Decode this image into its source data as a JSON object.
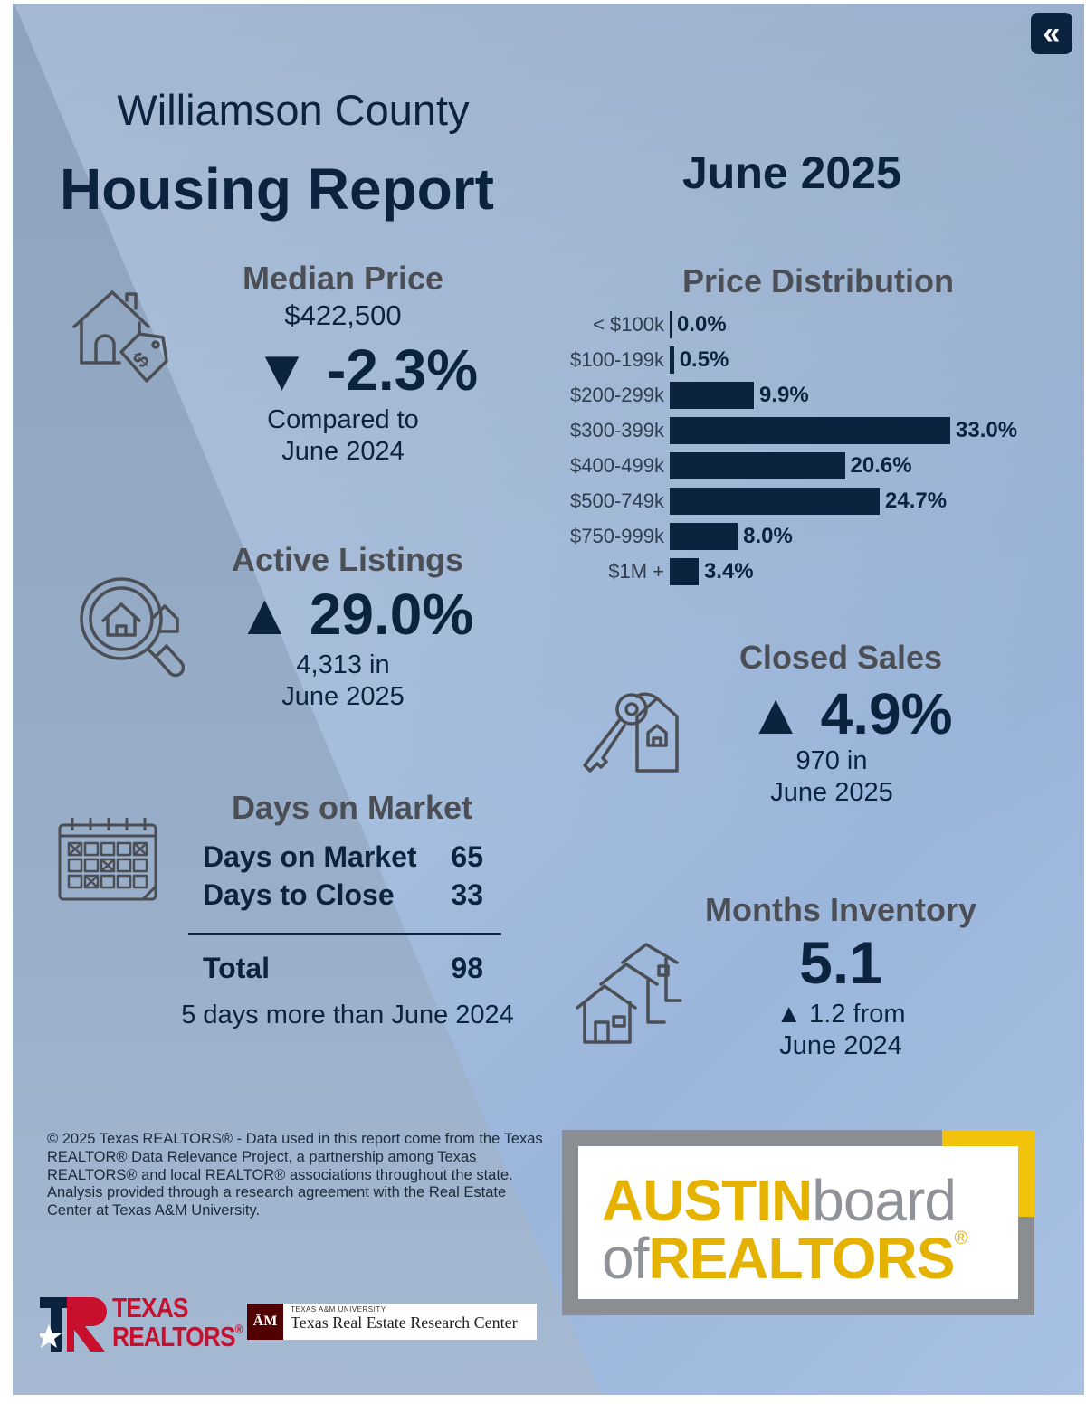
{
  "header": {
    "county": "Williamson County",
    "title": "Housing Report",
    "month": "June 2025",
    "collapse_glyph": "«"
  },
  "median_price": {
    "title": "Median Price",
    "price": "$422,500",
    "change": "▼ -2.3%",
    "compare_line1": "Compared to",
    "compare_line2": "June 2024",
    "icon": "house-price-tag-icon"
  },
  "active_listings": {
    "title": "Active Listings",
    "change": "▲ 29.0%",
    "sub_line1": "4,313 in",
    "sub_line2": "June 2025",
    "icon": "magnifier-house-icon"
  },
  "days_on_market": {
    "title": "Days on Market",
    "rows": [
      {
        "label": "Days on Market",
        "value": "65"
      },
      {
        "label": "Days to Close",
        "value": "33"
      }
    ],
    "total_label": "Total",
    "total_value": "98",
    "note": "5 days more than June 2024",
    "icon": "calendar-icon"
  },
  "price_distribution": {
    "title": "Price Distribution"
  },
  "chart_data": {
    "type": "bar",
    "orientation": "horizontal",
    "title": "Price Distribution",
    "categories": [
      "< $100k",
      "$100-199k",
      "$200-299k",
      "$300-399k",
      "$400-499k",
      "$500-749k",
      "$750-999k",
      "$1M +"
    ],
    "values": [
      0.0,
      0.5,
      9.9,
      33.0,
      20.6,
      24.7,
      8.0,
      3.4
    ],
    "value_labels": [
      "0.0%",
      "0.5%",
      "9.9%",
      "33.0%",
      "20.6%",
      "24.7%",
      "8.0%",
      "3.4%"
    ],
    "unit": "%",
    "color": "#0c2340",
    "grid": false
  },
  "closed_sales": {
    "title": "Closed Sales",
    "change": "▲ 4.9%",
    "sub_line1": "970 in",
    "sub_line2": "June 2025",
    "icon": "key-house-icon"
  },
  "months_inventory": {
    "title": "Months Inventory",
    "value": "5.1",
    "sub_line1": "▲ 1.2 from",
    "sub_line2": "June 2024",
    "icon": "houses-icon"
  },
  "footer": {
    "copyright": "© 2025 Texas REALTORS® - Data used in this report come from the Texas REALTOR® Data Relevance Project, a partnership among Texas REALTORS® and local REALTOR® associations throughout the state. Analysis provided through a research agreement with the Real Estate Center at Texas A&M University.",
    "abor": {
      "austin": "AUSTIN",
      "board": "board",
      "of": "of",
      "realtors": "REALTORS",
      "reg": "®"
    },
    "texas_realtors": {
      "line1": "TEXAS",
      "line2": "REALTORS",
      "reg": "®"
    },
    "tamu": {
      "mark": "ĀM",
      "small": "TEXAS A&M UNIVERSITY",
      "name": "Texas Real Estate Research Center"
    }
  },
  "colors": {
    "navy": "#0c2340",
    "gray_heading": "#4b4f55",
    "abor_yellow": "#e5b200",
    "texas_red": "#c8102e",
    "tamu_maroon": "#500000"
  }
}
